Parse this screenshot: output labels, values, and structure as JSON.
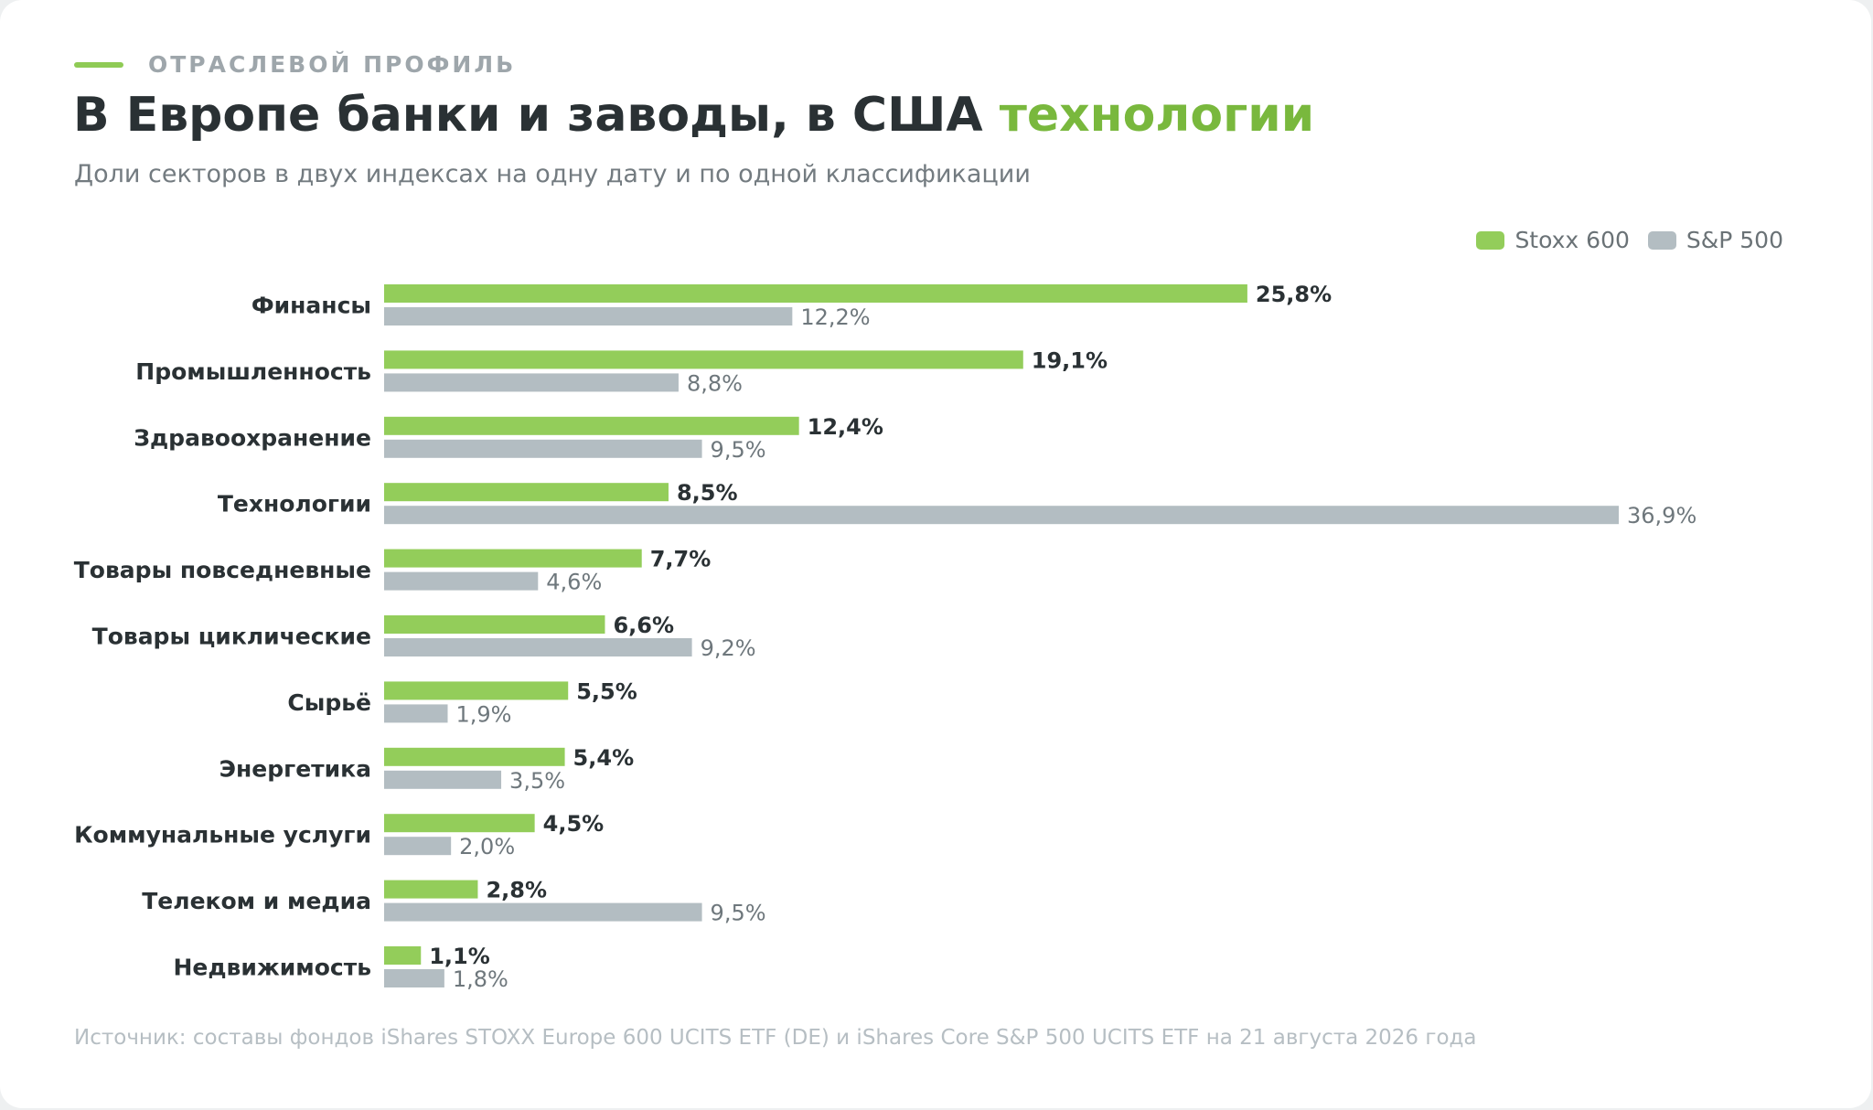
{
  "header": {
    "eyebrow": "ОТРАСЛЕВОЙ ПРОФИЛЬ",
    "title_main": "В Европе банки и заводы, в США ",
    "title_accent": "технологии",
    "subtitle": "Доли секторов в двух индексах на одну дату и по одной классификации"
  },
  "legend": {
    "items": [
      {
        "label": "Stoxx 600",
        "color": "#93cd5a"
      },
      {
        "label": "S&P 500",
        "color": "#b3bdc2"
      }
    ]
  },
  "footer": {
    "source": "Источник: составы фондов iShares STOXX Europe 600 UCITS ETF (DE) и iShares Core S&P 500 UCITS ETF на 21 августа 2026 года"
  },
  "colors": {
    "accent": "#79b83d",
    "stoxx": "#93cd5a",
    "sp": "#b3bdc2",
    "label_text": "#2a3134",
    "sp_value_text": "#6e777c"
  },
  "chart_data": {
    "type": "bar",
    "orientation": "horizontal",
    "unit": "%",
    "categories": [
      "Финансы",
      "Промышленность",
      "Здравоохранение",
      "Технологии",
      "Товары повседневные",
      "Товары циклические",
      "Сырьё",
      "Энергетика",
      "Коммунальные услуги",
      "Телеком и медиа",
      "Недвижимость"
    ],
    "series": [
      {
        "name": "Stoxx 600",
        "values": [
          25.8,
          19.1,
          12.4,
          8.5,
          7.7,
          6.6,
          5.5,
          5.4,
          4.5,
          2.8,
          1.1
        ],
        "labels": [
          "25,8%",
          "19,1%",
          "12,4%",
          "8,5%",
          "7,7%",
          "6,6%",
          "5,5%",
          "5,4%",
          "4,5%",
          "2,8%",
          "1,1%"
        ]
      },
      {
        "name": "S&P 500",
        "values": [
          12.2,
          8.8,
          9.5,
          36.9,
          4.6,
          9.2,
          1.9,
          3.5,
          2.0,
          9.5,
          1.8
        ],
        "labels": [
          "12,2%",
          "8,8%",
          "9,5%",
          "36,9%",
          "4,6%",
          "9,2%",
          "1,9%",
          "3,5%",
          "2,0%",
          "9,5%",
          "1,8%"
        ]
      }
    ],
    "xlim": [
      0,
      36.9
    ],
    "grid": false,
    "legend_position": "top-right"
  }
}
